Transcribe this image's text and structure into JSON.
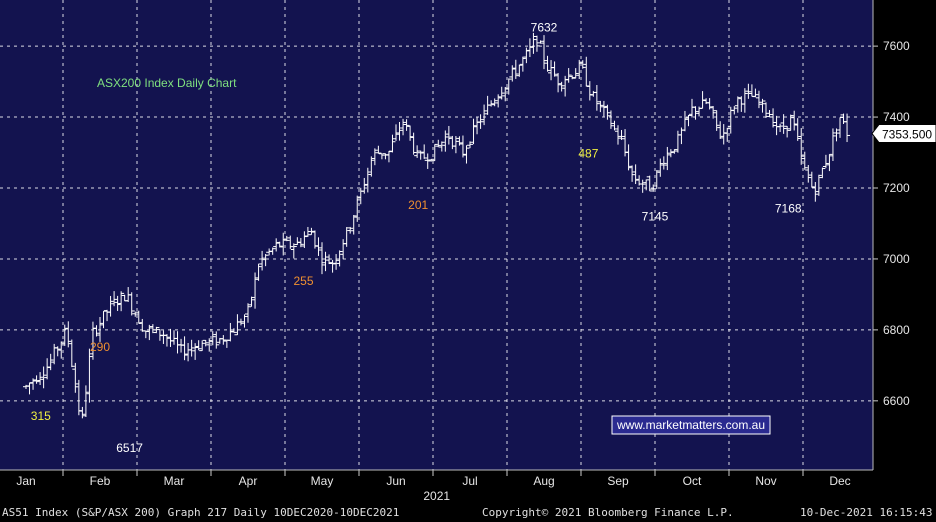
{
  "chart_data": {
    "type": "ohlc",
    "title": "ASX200 Index Daily Chart",
    "watermark": "www.marketmatters.com.au",
    "year_label": "2021",
    "x_ticks": [
      "Jan",
      "Feb",
      "Mar",
      "Apr",
      "May",
      "Jun",
      "Jul",
      "Aug",
      "Sep",
      "Oct",
      "Nov",
      "Dec"
    ],
    "y_ticks": [
      6600,
      6800,
      7000,
      7200,
      7400,
      7600
    ],
    "ylim": [
      6405,
      7730
    ],
    "last_price": "7353.500",
    "grid": true,
    "colors": {
      "background": "#13134f",
      "candles": "#ffffff",
      "grid": "#ffffff",
      "title": "#7fe07f",
      "yellow_labels": "#f0f040",
      "orange_labels": "#f09030",
      "white_labels": "#ffffff",
      "watermark_border": "#ffffff",
      "watermark_text": "#ffffff",
      "watermark_bg": "#2a2a90"
    },
    "annotations": [
      {
        "text": "7632",
        "style": "white",
        "x_month": 7.0,
        "y_value": 7655
      },
      {
        "text": "6517",
        "style": "white",
        "x_month": 1.4,
        "y_value": 6470
      },
      {
        "text": "7145",
        "style": "white",
        "x_month": 8.5,
        "y_value": 7122
      },
      {
        "text": "7168",
        "style": "white",
        "x_month": 10.3,
        "y_value": 7145
      },
      {
        "text": "315",
        "style": "yellow",
        "x_month": 0.2,
        "y_value": 6560
      },
      {
        "text": "290",
        "style": "orange",
        "x_month": 1.0,
        "y_value": 6755
      },
      {
        "text": "255",
        "style": "orange",
        "x_month": 3.75,
        "y_value": 6940
      },
      {
        "text": "201",
        "style": "orange",
        "x_month": 5.3,
        "y_value": 7155
      },
      {
        "text": "487",
        "style": "yellow",
        "x_month": 7.6,
        "y_value": 7300
      }
    ],
    "points": [
      [
        0.0,
        6640
      ],
      [
        0.3,
        6700
      ],
      [
        0.55,
        6800
      ],
      [
        0.75,
        6530
      ],
      [
        0.9,
        6790
      ],
      [
        1.15,
        6870
      ],
      [
        1.35,
        6900
      ],
      [
        1.6,
        6800
      ],
      [
        1.85,
        6790
      ],
      [
        2.1,
        6740
      ],
      [
        2.35,
        6760
      ],
      [
        2.6,
        6770
      ],
      [
        2.8,
        6800
      ],
      [
        3.0,
        6850
      ],
      [
        3.15,
        6990
      ],
      [
        3.4,
        7040
      ],
      [
        3.65,
        7040
      ],
      [
        3.85,
        7080
      ],
      [
        4.0,
        7000
      ],
      [
        4.15,
        6990
      ],
      [
        4.35,
        7080
      ],
      [
        4.5,
        7170
      ],
      [
        4.7,
        7300
      ],
      [
        4.9,
        7300
      ],
      [
        5.1,
        7390
      ],
      [
        5.3,
        7280
      ],
      [
        5.5,
        7300
      ],
      [
        5.7,
        7350
      ],
      [
        5.9,
        7300
      ],
      [
        6.1,
        7380
      ],
      [
        6.35,
        7460
      ],
      [
        6.5,
        7500
      ],
      [
        6.75,
        7570
      ],
      [
        6.9,
        7620
      ],
      [
        7.05,
        7540
      ],
      [
        7.2,
        7500
      ],
      [
        7.35,
        7520
      ],
      [
        7.5,
        7540
      ],
      [
        7.65,
        7460
      ],
      [
        7.85,
        7400
      ],
      [
        8.05,
        7330
      ],
      [
        8.2,
        7230
      ],
      [
        8.45,
        7200
      ],
      [
        8.6,
        7280
      ],
      [
        8.8,
        7330
      ],
      [
        9.0,
        7420
      ],
      [
        9.2,
        7440
      ],
      [
        9.4,
        7340
      ],
      [
        9.6,
        7450
      ],
      [
        9.8,
        7460
      ],
      [
        10.0,
        7420
      ],
      [
        10.2,
        7360
      ],
      [
        10.35,
        7400
      ],
      [
        10.5,
        7260
      ],
      [
        10.65,
        7190
      ],
      [
        10.85,
        7300
      ],
      [
        11.0,
        7400
      ],
      [
        11.1,
        7354
      ]
    ]
  },
  "footer": {
    "left": "AS51 Index (S&P/ASX 200) Graph 217  Daily 10DEC2020-10DEC2021",
    "center": "Copyright© 2021 Bloomberg Finance L.P.",
    "right": "10-Dec-2021 16:15:43"
  }
}
